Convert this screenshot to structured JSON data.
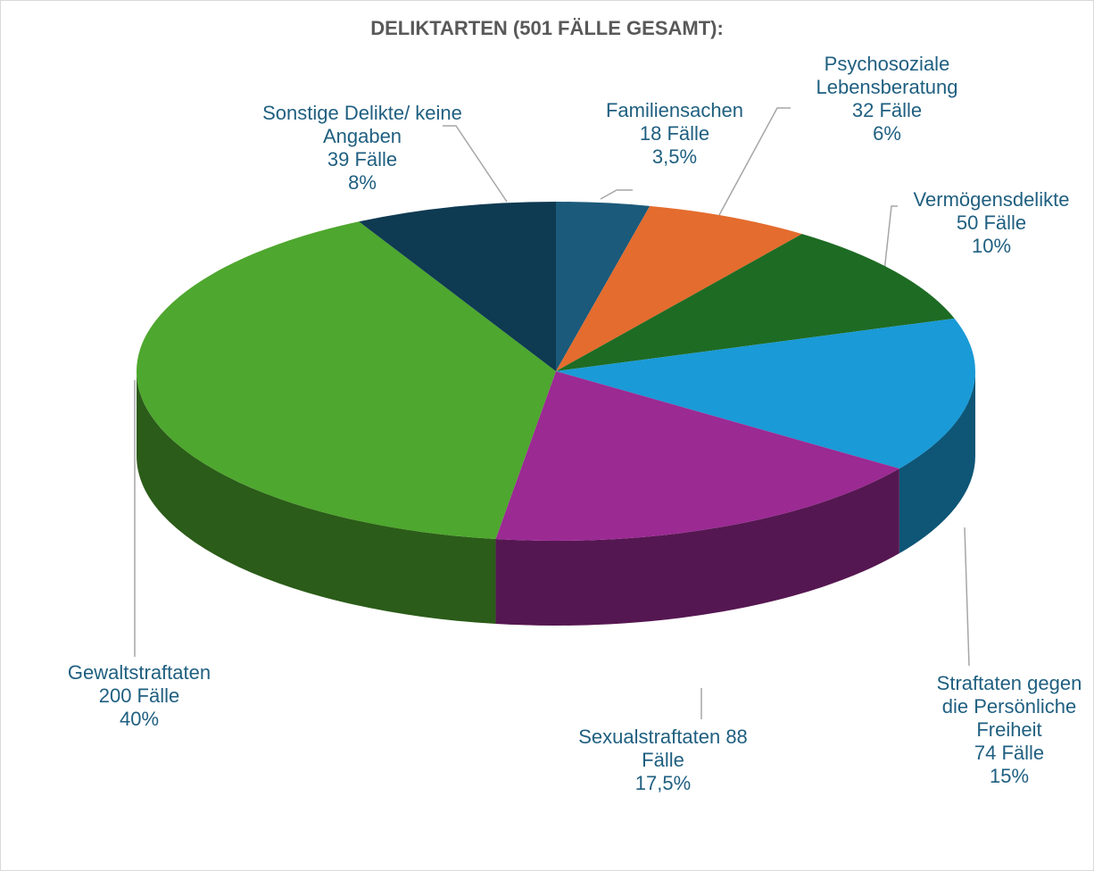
{
  "chart_data": {
    "type": "pie",
    "title": "DELIKTARTEN (501 FÄLLE GESAMT):",
    "categories": [
      "Familiensachen",
      "Psychosoziale Lebensberatung",
      "Vermögensdelikte",
      "Straftaten gegen die Persönliche Freiheit",
      "Sexualstraftaten",
      "Gewaltstraftaten",
      "Sonstige Delikte/ keine Angaben"
    ],
    "values": [
      18,
      32,
      50,
      74,
      88,
      200,
      39
    ],
    "value_labels": [
      "18 Fälle",
      "32 Fälle",
      "50 Fälle",
      "74 Fälle",
      "88 Fälle",
      "200 Fälle",
      "39 Fälle"
    ],
    "percentages": [
      3.5,
      6,
      10,
      15,
      17.5,
      40,
      8
    ],
    "percent_labels": [
      "3,5%",
      "6%",
      "10%",
      "15%",
      "17,5%",
      "40%",
      "8%"
    ],
    "colors": [
      "#1b5a7a",
      "#e46c2e",
      "#1e6b24",
      "#1a9ad6",
      "#9b2a93",
      "#4ea72e",
      "#0e3a52"
    ]
  }
}
